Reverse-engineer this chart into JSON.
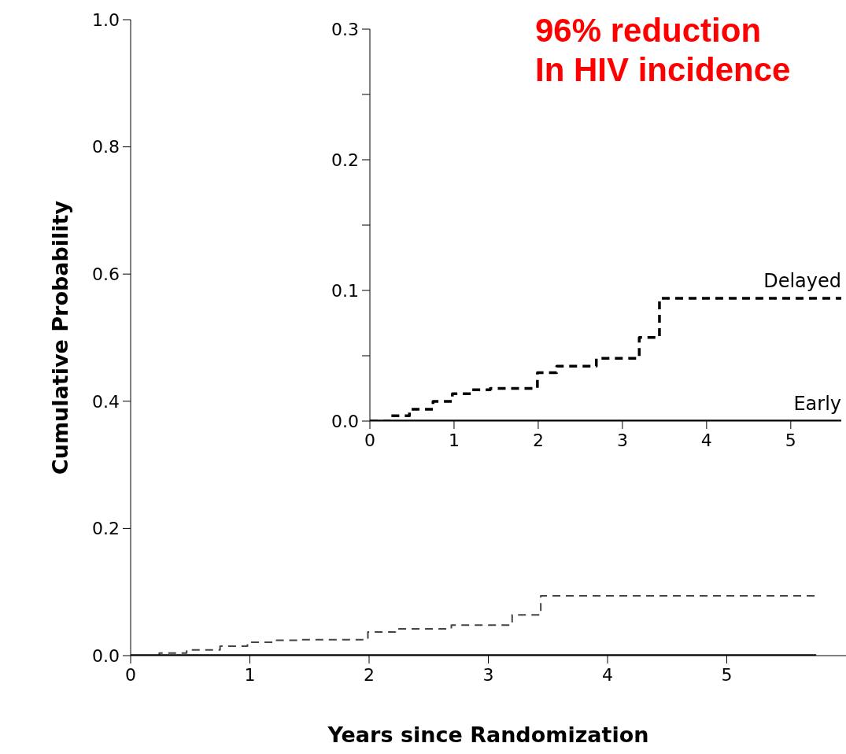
{
  "chart_data": [
    {
      "type": "step",
      "xlabel": "Years since Randomization",
      "ylabel": "Cumulative Probability",
      "marker": "none",
      "xlim": [
        0,
        6
      ],
      "xticks": [
        0,
        1,
        2,
        3,
        4,
        5
      ],
      "ylim": [
        0,
        1
      ],
      "yticks": [
        {
          "value": 0,
          "label": "0.0"
        },
        {
          "value": 0.2,
          "label": "0.2"
        },
        {
          "value": 0.4,
          "label": "0.4"
        },
        {
          "value": 0.6,
          "label": "0.6"
        },
        {
          "value": 0.8,
          "label": "0.8"
        },
        {
          "value": 1,
          "label": "1.0"
        }
      ],
      "annotations": [
        "96% reduction",
        "In HIV incidence"
      ],
      "series": [
        {
          "color": "#444444",
          "line_style": "dashed",
          "x": [
            0,
            0.24,
            0.47,
            0.75,
            0.98,
            1.2,
            1.43,
            1.99,
            2.22,
            2.69,
            3.2,
            3.44,
            5.75
          ],
          "values": [
            0,
            0.004,
            0.009,
            0.015,
            0.021,
            0.024,
            0.025,
            0.037,
            0.042,
            0.048,
            0.064,
            0.094,
            0.094
          ]
        },
        {
          "color": "#000000",
          "line_style": "solid",
          "x": [
            0,
            5.75
          ],
          "values": [
            0,
            0
          ]
        }
      ]
    },
    {
      "type": "step",
      "marker": "none",
      "xlim": [
        0,
        5.6
      ],
      "xticks": [
        0,
        1,
        2,
        3,
        4,
        5
      ],
      "ylim": [
        0,
        0.3
      ],
      "yticks": [
        {
          "value": 0,
          "label": "0.0"
        },
        {
          "value": 0.05,
          "label": null
        },
        {
          "value": 0.1,
          "label": "0.1"
        },
        {
          "value": 0.15,
          "label": null
        },
        {
          "value": 0.2,
          "label": "0.2"
        },
        {
          "value": 0.25,
          "label": null
        },
        {
          "value": 0.3,
          "label": "0.3"
        }
      ],
      "series": [
        {
          "name": "Delayed",
          "color": "#000000",
          "line_style": "dashed",
          "x": [
            0,
            0.24,
            0.47,
            0.75,
            0.98,
            1.2,
            1.43,
            1.99,
            2.22,
            2.69,
            3.2,
            3.44,
            5.6
          ],
          "values": [
            0,
            0.004,
            0.009,
            0.015,
            0.021,
            0.024,
            0.025,
            0.037,
            0.042,
            0.048,
            0.064,
            0.094,
            0.094
          ]
        },
        {
          "name": "Early",
          "color": "#000000",
          "line_style": "solid",
          "x": [
            0,
            5.6
          ],
          "values": [
            0,
            0
          ]
        }
      ]
    }
  ]
}
